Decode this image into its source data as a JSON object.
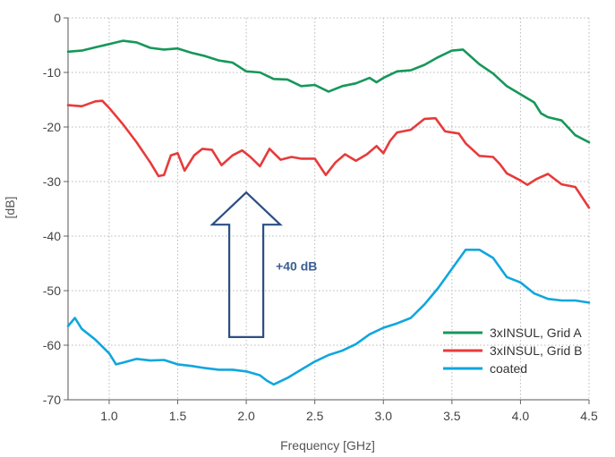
{
  "chart_data": {
    "type": "line",
    "xlabel": "Frequency [GHz]",
    "ylabel": "[dB]",
    "xlim": [
      0.7,
      4.5
    ],
    "ylim": [
      -70,
      0
    ],
    "xticks": [
      1.0,
      1.5,
      2.0,
      2.5,
      3.0,
      3.5,
      4.0,
      4.5
    ],
    "xtick_labels": [
      "1.0",
      "1.5",
      "2.0",
      "2.5",
      "3.0",
      "3.5",
      "4.0",
      "4.5"
    ],
    "yticks": [
      0,
      -10,
      -20,
      -30,
      -40,
      -50,
      -60,
      -70
    ],
    "ytick_labels": [
      "0",
      "-10",
      "-20",
      "-30",
      "-40",
      "-50",
      "-60",
      "-70"
    ],
    "grid": true,
    "legend_position": "bottom-right",
    "colors": {
      "gridA": "#17975a",
      "gridB": "#e83a3a",
      "coated": "#10a6de",
      "arrow": "#2b4f83",
      "annotation": "#3b5d94"
    },
    "annotation": {
      "text": "+40 dB",
      "arrow_from_db": -58.5,
      "arrow_to_db": -32
    },
    "series": [
      {
        "name": "3xINSUL, Grid A",
        "color_key": "gridA",
        "points": [
          [
            0.7,
            -6.2
          ],
          [
            0.8,
            -6.0
          ],
          [
            0.9,
            -5.4
          ],
          [
            1.0,
            -4.8
          ],
          [
            1.1,
            -4.2
          ],
          [
            1.2,
            -4.5
          ],
          [
            1.3,
            -5.5
          ],
          [
            1.4,
            -5.8
          ],
          [
            1.5,
            -5.6
          ],
          [
            1.6,
            -6.4
          ],
          [
            1.7,
            -7.0
          ],
          [
            1.8,
            -7.8
          ],
          [
            1.9,
            -8.2
          ],
          [
            2.0,
            -9.8
          ],
          [
            2.1,
            -10.0
          ],
          [
            2.2,
            -11.2
          ],
          [
            2.3,
            -11.3
          ],
          [
            2.4,
            -12.5
          ],
          [
            2.5,
            -12.3
          ],
          [
            2.6,
            -13.5
          ],
          [
            2.7,
            -12.5
          ],
          [
            2.8,
            -12.0
          ],
          [
            2.9,
            -11.0
          ],
          [
            2.95,
            -11.8
          ],
          [
            3.0,
            -11.0
          ],
          [
            3.1,
            -9.8
          ],
          [
            3.2,
            -9.6
          ],
          [
            3.3,
            -8.6
          ],
          [
            3.4,
            -7.2
          ],
          [
            3.5,
            -6.0
          ],
          [
            3.58,
            -5.8
          ],
          [
            3.7,
            -8.5
          ],
          [
            3.8,
            -10.2
          ],
          [
            3.9,
            -12.5
          ],
          [
            4.0,
            -14.0
          ],
          [
            4.1,
            -15.5
          ],
          [
            4.15,
            -17.5
          ],
          [
            4.2,
            -18.2
          ],
          [
            4.3,
            -18.8
          ],
          [
            4.4,
            -21.5
          ],
          [
            4.5,
            -22.8
          ]
        ]
      },
      {
        "name": "3xINSUL, Grid B",
        "color_key": "gridB",
        "points": [
          [
            0.7,
            -16.0
          ],
          [
            0.8,
            -16.2
          ],
          [
            0.9,
            -15.3
          ],
          [
            0.95,
            -15.2
          ],
          [
            1.0,
            -16.5
          ],
          [
            1.1,
            -19.5
          ],
          [
            1.2,
            -22.8
          ],
          [
            1.3,
            -26.5
          ],
          [
            1.36,
            -29.0
          ],
          [
            1.4,
            -28.8
          ],
          [
            1.45,
            -25.2
          ],
          [
            1.5,
            -24.8
          ],
          [
            1.55,
            -28.0
          ],
          [
            1.62,
            -25.2
          ],
          [
            1.68,
            -24.0
          ],
          [
            1.75,
            -24.2
          ],
          [
            1.82,
            -27.0
          ],
          [
            1.9,
            -25.2
          ],
          [
            1.97,
            -24.3
          ],
          [
            2.03,
            -25.5
          ],
          [
            2.1,
            -27.2
          ],
          [
            2.17,
            -24.0
          ],
          [
            2.25,
            -26.0
          ],
          [
            2.33,
            -25.5
          ],
          [
            2.4,
            -25.8
          ],
          [
            2.5,
            -25.8
          ],
          [
            2.58,
            -28.8
          ],
          [
            2.65,
            -26.5
          ],
          [
            2.72,
            -25.0
          ],
          [
            2.8,
            -26.2
          ],
          [
            2.88,
            -25.0
          ],
          [
            2.95,
            -23.5
          ],
          [
            3.0,
            -24.8
          ],
          [
            3.05,
            -22.5
          ],
          [
            3.1,
            -21.0
          ],
          [
            3.2,
            -20.5
          ],
          [
            3.3,
            -18.5
          ],
          [
            3.38,
            -18.4
          ],
          [
            3.45,
            -20.8
          ],
          [
            3.55,
            -21.2
          ],
          [
            3.6,
            -23.0
          ],
          [
            3.7,
            -25.3
          ],
          [
            3.8,
            -25.5
          ],
          [
            3.85,
            -26.8
          ],
          [
            3.9,
            -28.5
          ],
          [
            4.0,
            -29.8
          ],
          [
            4.05,
            -30.6
          ],
          [
            4.12,
            -29.5
          ],
          [
            4.2,
            -28.6
          ],
          [
            4.3,
            -30.5
          ],
          [
            4.4,
            -31.0
          ],
          [
            4.5,
            -34.8
          ]
        ]
      },
      {
        "name": "coated",
        "color_key": "coated",
        "points": [
          [
            0.7,
            -56.5
          ],
          [
            0.75,
            -55.0
          ],
          [
            0.8,
            -57.0
          ],
          [
            0.9,
            -59.0
          ],
          [
            1.0,
            -61.5
          ],
          [
            1.05,
            -63.5
          ],
          [
            1.1,
            -63.2
          ],
          [
            1.2,
            -62.5
          ],
          [
            1.3,
            -62.8
          ],
          [
            1.4,
            -62.7
          ],
          [
            1.5,
            -63.5
          ],
          [
            1.6,
            -63.8
          ],
          [
            1.7,
            -64.2
          ],
          [
            1.8,
            -64.5
          ],
          [
            1.9,
            -64.5
          ],
          [
            2.0,
            -64.8
          ],
          [
            2.1,
            -65.5
          ],
          [
            2.15,
            -66.5
          ],
          [
            2.2,
            -67.2
          ],
          [
            2.3,
            -66.0
          ],
          [
            2.4,
            -64.5
          ],
          [
            2.5,
            -63.0
          ],
          [
            2.6,
            -61.8
          ],
          [
            2.7,
            -61.0
          ],
          [
            2.8,
            -59.8
          ],
          [
            2.9,
            -58.0
          ],
          [
            3.0,
            -56.8
          ],
          [
            3.1,
            -56.0
          ],
          [
            3.2,
            -55.0
          ],
          [
            3.3,
            -52.5
          ],
          [
            3.4,
            -49.5
          ],
          [
            3.5,
            -46.0
          ],
          [
            3.6,
            -42.5
          ],
          [
            3.7,
            -42.5
          ],
          [
            3.8,
            -44.0
          ],
          [
            3.9,
            -47.5
          ],
          [
            4.0,
            -48.5
          ],
          [
            4.1,
            -50.5
          ],
          [
            4.2,
            -51.5
          ],
          [
            4.3,
            -51.8
          ],
          [
            4.4,
            -51.8
          ],
          [
            4.5,
            -52.2
          ]
        ]
      }
    ]
  }
}
